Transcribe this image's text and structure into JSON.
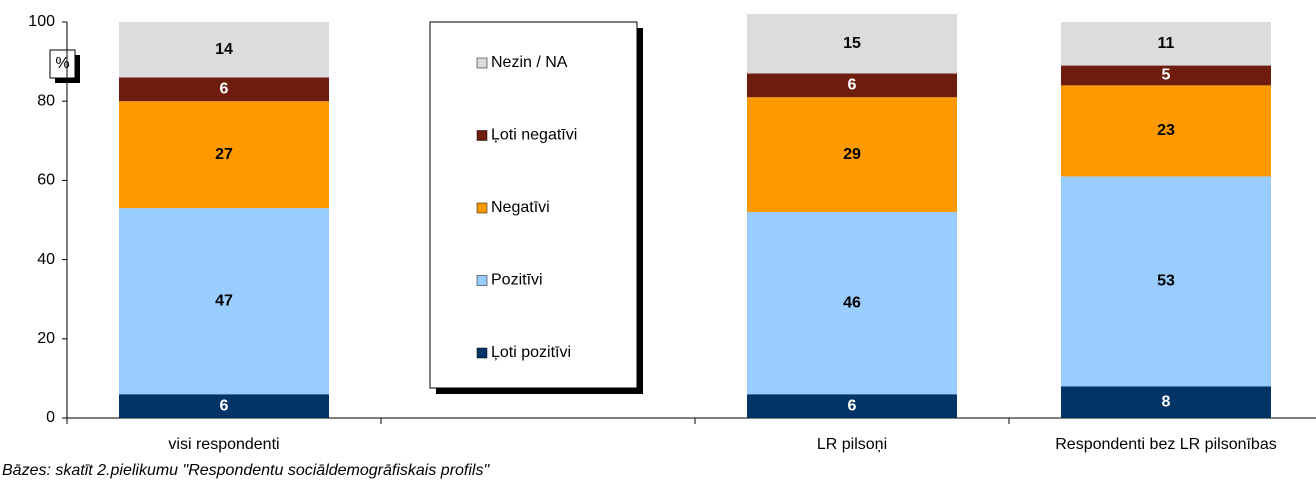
{
  "chart_data": {
    "type": "stacked_bar",
    "categories": [
      "visi respondenti",
      null,
      "LR pilsoņi",
      "Respondenti bez LR pilsonības"
    ],
    "series": [
      {
        "name": "Ļoti pozitīvi",
        "color": "#003366",
        "label_color": "#ffffff",
        "values": [
          6,
          null,
          6,
          8
        ]
      },
      {
        "name": "Pozitīvi",
        "color": "#99ccff",
        "label_color": "#000000",
        "values": [
          47,
          null,
          46,
          53
        ]
      },
      {
        "name": "Negatīvi",
        "color": "#ff9900",
        "label_color": "#000000",
        "values": [
          27,
          null,
          29,
          23
        ]
      },
      {
        "name": "Ļoti negatīvi",
        "color": "#6e1c0e",
        "label_color": "#ffffff",
        "values": [
          6,
          null,
          6,
          5
        ]
      },
      {
        "name": "Nezin / NA",
        "color": "#dcdcdc",
        "label_color": "#000000",
        "values": [
          14,
          null,
          15,
          11
        ]
      }
    ],
    "ylim": [
      0,
      100
    ],
    "yticks": [
      0,
      20,
      40,
      60,
      80,
      100
    ],
    "y_unit": "%",
    "footnote": "Bāzes: skatīt 2.pielikumu \"Respondentu sociāldemogrāfiskais profils\""
  }
}
